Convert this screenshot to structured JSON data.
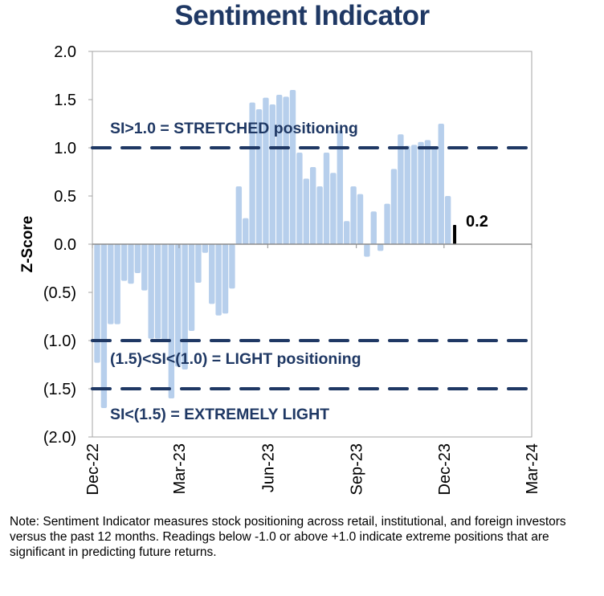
{
  "chart_data": {
    "type": "bar",
    "title": "Sentiment Indicator",
    "xlabel": "",
    "ylabel": "Z-Score",
    "ylim": [
      -2.0,
      2.0
    ],
    "y_ticks": [
      "2.0",
      "1.5",
      "1.0",
      "0.5",
      "0.0",
      "(0.5)",
      "(1.0)",
      "(1.5)",
      "(2.0)"
    ],
    "y_tick_values": [
      2.0,
      1.5,
      1.0,
      0.5,
      0.0,
      -0.5,
      -1.0,
      -1.5,
      -2.0
    ],
    "x_ticks": [
      "Dec-22",
      "Mar-23",
      "Jun-23",
      "Sep-23",
      "Dec-23",
      "Mar-24"
    ],
    "x_tick_dates": [
      "2022-12-01",
      "2023-03-01",
      "2023-06-01",
      "2023-09-01",
      "2023-12-01",
      "2024-03-01"
    ],
    "xlim": [
      "2022-12-01",
      "2024-03-01"
    ],
    "grid": false,
    "colors": {
      "bars": "#b7cfec",
      "latest": "#000000",
      "threshold": "#1f3864",
      "title": "#1f3864"
    },
    "x": [
      "2022-12-06",
      "2022-12-13",
      "2022-12-20",
      "2022-12-27",
      "2023-01-03",
      "2023-01-10",
      "2023-01-17",
      "2023-01-24",
      "2023-01-31",
      "2023-02-07",
      "2023-02-14",
      "2023-02-21",
      "2023-02-28",
      "2023-03-07",
      "2023-03-14",
      "2023-03-21",
      "2023-03-28",
      "2023-04-04",
      "2023-04-11",
      "2023-04-18",
      "2023-04-25",
      "2023-05-02",
      "2023-05-09",
      "2023-05-16",
      "2023-05-23",
      "2023-05-30",
      "2023-06-06",
      "2023-06-13",
      "2023-06-20",
      "2023-06-27",
      "2023-07-04",
      "2023-07-11",
      "2023-07-18",
      "2023-07-25",
      "2023-08-01",
      "2023-08-08",
      "2023-08-15",
      "2023-08-22",
      "2023-08-29",
      "2023-09-05",
      "2023-09-12",
      "2023-09-19",
      "2023-09-26",
      "2023-10-03",
      "2023-10-10",
      "2023-10-17",
      "2023-10-24",
      "2023-10-31",
      "2023-11-07",
      "2023-11-14",
      "2023-11-21",
      "2023-11-28",
      "2023-12-05",
      "2023-12-12"
    ],
    "values": [
      -1.23,
      -1.7,
      -0.83,
      -0.83,
      -0.38,
      -0.41,
      -0.3,
      -0.48,
      -0.98,
      -0.98,
      -1.0,
      -1.6,
      -1.27,
      -1.3,
      -0.9,
      -0.4,
      -0.09,
      -0.62,
      -0.74,
      -0.72,
      -0.46,
      0.6,
      0.27,
      1.47,
      1.4,
      1.52,
      1.45,
      1.55,
      1.53,
      1.6,
      0.95,
      0.68,
      0.8,
      0.6,
      0.95,
      0.74,
      1.18,
      0.24,
      0.6,
      0.52,
      -0.13,
      0.34,
      -0.07,
      0.42,
      0.78,
      1.14,
      1.02,
      1.03,
      1.06,
      1.08,
      1.0,
      1.25,
      0.5,
      0.2
    ],
    "latest_label": "0.2",
    "thresholds": [
      {
        "value": 1.0,
        "label": "SI>1.0 = STRETCHED positioning"
      },
      {
        "value": -1.0,
        "label": "(1.5)<SI<(1.0) = LIGHT positioning"
      },
      {
        "value": -1.5,
        "label": "SI<(1.5) = EXTREMELY LIGHT"
      }
    ]
  },
  "note": "Note: Sentiment Indicator measures stock positioning across retail, institutional, and foreign investors versus the past 12 months. Readings below -1.0 or above +1.0 indicate extreme positions that are significant in predicting future returns."
}
